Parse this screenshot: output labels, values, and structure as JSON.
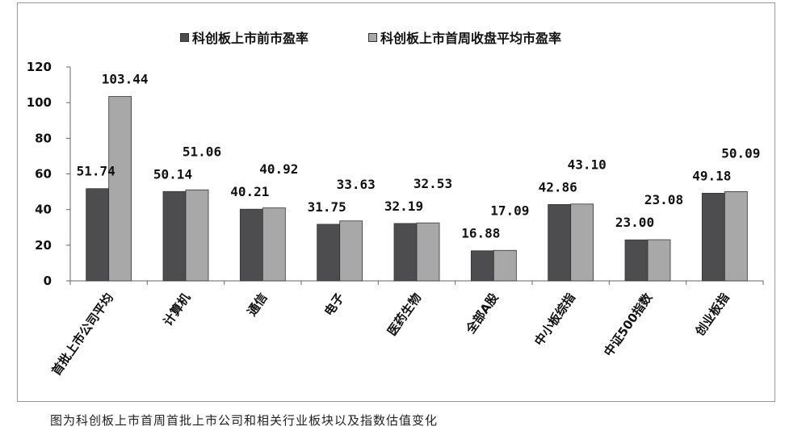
{
  "chart_data": {
    "type": "bar",
    "categories": [
      "首批上市公司平均",
      "计算机",
      "通信",
      "电子",
      "医药生物",
      "全部A股",
      "中小板综指",
      "中证500指数",
      "创业板指"
    ],
    "series": [
      {
        "name": "科创板上市前市盈率",
        "color": "#4d4d4f",
        "values": [
          51.74,
          50.14,
          40.21,
          31.75,
          32.19,
          16.88,
          42.86,
          23.0,
          49.18
        ],
        "labels": [
          "51.74",
          "50.14",
          "40.21",
          "31.75",
          "32.19",
          "16.88",
          "42.86",
          "23.00",
          "49.18"
        ]
      },
      {
        "name": "科创板上市首周收盘平均市盈率",
        "color": "#a8a8a8",
        "values": [
          103.44,
          51.06,
          40.92,
          33.63,
          32.53,
          17.09,
          43.1,
          23.08,
          50.09
        ],
        "labels": [
          "103.44",
          "51.06",
          "40.92",
          "33.63",
          "32.53",
          "17.09",
          "43.10",
          "23.08",
          "50.09"
        ]
      }
    ],
    "ylim": [
      0,
      120
    ],
    "yticks": [
      "0",
      "20",
      "40",
      "60",
      "80",
      "100",
      "120"
    ],
    "grid": false,
    "legend_position": "top"
  },
  "caption": "图为科创板上市首周首批上市公司和相关行业板块以及指数估值变化"
}
